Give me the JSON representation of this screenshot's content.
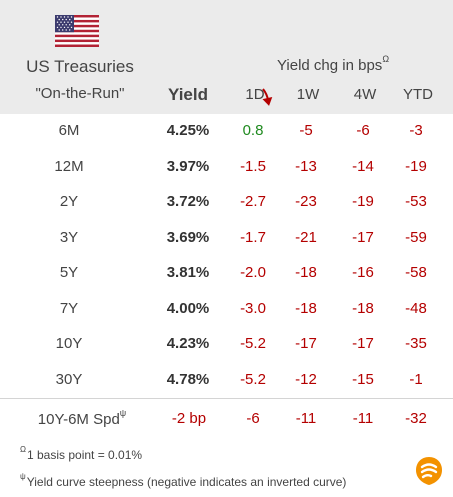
{
  "header": {
    "title_line1": "US Treasuries",
    "title_line2": "\"On-the-Run\"",
    "yield_label": "Yield",
    "change_label": "Yield chg in bps",
    "change_label_marker": "Ω",
    "columns": [
      "1D",
      "1W",
      "4W",
      "YTD"
    ]
  },
  "colors": {
    "header_bg": "#ebebeb",
    "negative": "#b40000",
    "positive": "#1f8a1f",
    "arrow": "#b40000"
  },
  "chart_data": {
    "type": "table",
    "columns": [
      "Yield",
      "1D",
      "1W",
      "4W",
      "YTD"
    ],
    "rows": [
      {
        "tenor": "6M",
        "yield": "4.25%",
        "d1": "0.8",
        "w1": "-5",
        "w4": "-6",
        "ytd": "-3"
      },
      {
        "tenor": "12M",
        "yield": "3.97%",
        "d1": "-1.5",
        "w1": "-13",
        "w4": "-14",
        "ytd": "-19"
      },
      {
        "tenor": "2Y",
        "yield": "3.72%",
        "d1": "-2.7",
        "w1": "-23",
        "w4": "-19",
        "ytd": "-53"
      },
      {
        "tenor": "3Y",
        "yield": "3.69%",
        "d1": "-1.7",
        "w1": "-21",
        "w4": "-17",
        "ytd": "-59"
      },
      {
        "tenor": "5Y",
        "yield": "3.81%",
        "d1": "-2.0",
        "w1": "-18",
        "w4": "-16",
        "ytd": "-58"
      },
      {
        "tenor": "7Y",
        "yield": "4.00%",
        "d1": "-3.0",
        "w1": "-18",
        "w4": "-18",
        "ytd": "-48"
      },
      {
        "tenor": "10Y",
        "yield": "4.23%",
        "d1": "-5.2",
        "w1": "-17",
        "w4": "-17",
        "ytd": "-35"
      },
      {
        "tenor": "30Y",
        "yield": "4.78%",
        "d1": "-5.2",
        "w1": "-12",
        "w4": "-15",
        "ytd": "-1"
      }
    ],
    "spread": {
      "label": "10Y-6M Spd",
      "label_marker": "ψ",
      "yield": "-2 bp",
      "d1": "-6",
      "w1": "-11",
      "w4": "-11",
      "ytd": "-32"
    }
  },
  "footnotes": {
    "fn1_marker": "Ω",
    "fn1_text": "1 basis point = 0.01%",
    "fn2_marker": "ψ",
    "fn2_text": "Yield curve steepness (negative indicates an inverted curve)"
  },
  "icons": {
    "flag": "us-flag-icon",
    "arrow": "down-arrow-icon",
    "logo": "brand-logo-icon"
  }
}
